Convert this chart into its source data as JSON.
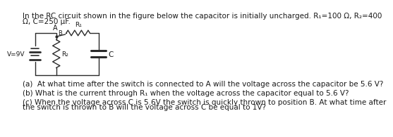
{
  "title_line1": "In the RC circuit shown in the figure below the capacitor is initially uncharged. R₁=100 Ω, R₂=400",
  "title_line2": "Ω, C=250 μF.",
  "question_a": "(a)  At what time after the switch is connected to A will the voltage across the capacitor be 5.6 V?",
  "question_b": "(b) What is the current through R₁ when the voltage across the capacitor equal to 5.6 V?",
  "question_c_1": "(c) When the voltage across C is 5.6V the switch is quickly thrown to position B. At what time after",
  "question_c_2": "the switch is thrown to B will the voltage across C be equal to 1V?",
  "bg_color": "#ffffff",
  "text_color": "#1a1a1a",
  "font_size": 7.5,
  "circuit_color": "#2a2a2a"
}
